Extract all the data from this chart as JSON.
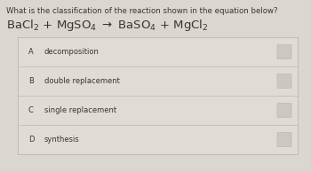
{
  "question": "What is the classification of the reaction shown in the equation below?",
  "equation_parts": [
    "BaCl",
    "2",
    " + MgSO",
    "4",
    " → BaSO",
    "4",
    " + MgCl",
    "2"
  ],
  "equation_plain": "BaCl₂ + MgSO₄ → BaSO₄ + MgCl₂",
  "options": [
    {
      "letter": "A",
      "text": "decomposition"
    },
    {
      "letter": "B",
      "text": "double replacement"
    },
    {
      "letter": "C",
      "text": "single replacement"
    },
    {
      "letter": "D",
      "text": "synthesis"
    }
  ],
  "bg_color": "#dbd6cf",
  "table_bg": "#e0dbd4",
  "row_bg_light": "#e8e4de",
  "border_color": "#c0b8b0",
  "question_fontsize": 6.2,
  "equation_fontsize": 9.5,
  "option_fontsize": 6.0,
  "letter_fontsize": 6.0,
  "text_color": "#3a3530",
  "bubble_color": "#ccc8c0"
}
